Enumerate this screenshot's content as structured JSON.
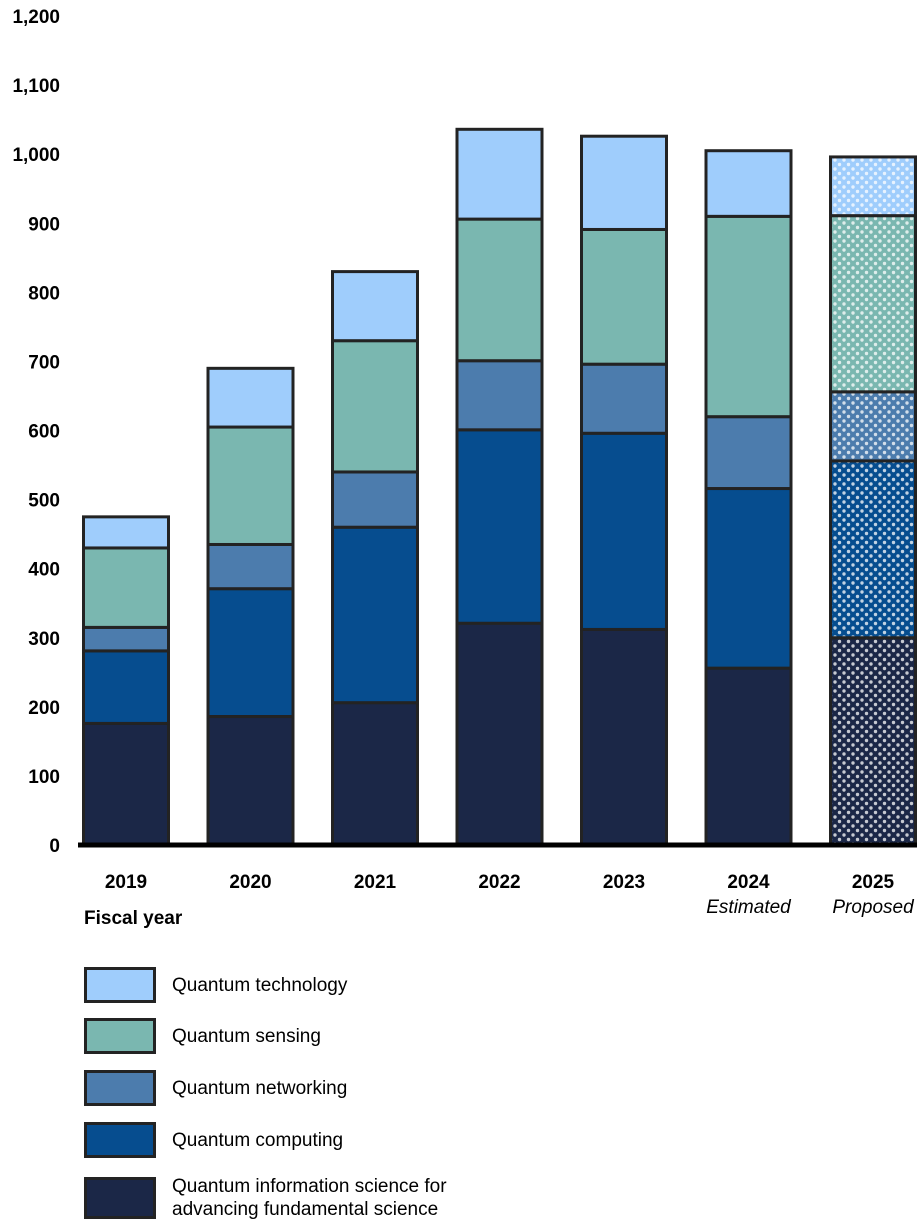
{
  "chart_data": {
    "type": "bar",
    "stacked": true,
    "x_axis_title": "Fiscal year",
    "categories": [
      "2019",
      "2020",
      "2021",
      "2022",
      "2023",
      "2024",
      "2025"
    ],
    "category_notes": [
      "",
      "",
      "",
      "",
      "",
      "Estimated",
      "Proposed"
    ],
    "ylim": [
      0,
      1200
    ],
    "yticks": [
      "0",
      "100",
      "200",
      "300",
      "400",
      "500",
      "600",
      "700",
      "800",
      "900",
      "1,000",
      "1,100",
      "1,200"
    ],
    "ytick_values": [
      0,
      100,
      200,
      300,
      400,
      500,
      600,
      700,
      800,
      900,
      1000,
      1100,
      1200
    ],
    "grid": false,
    "legend_position": "bottom",
    "hatched_categories": [
      "2025"
    ],
    "series": [
      {
        "name": "Quantum information science for\nadvancing fundamental science",
        "color": "#1b2747",
        "values": [
          176,
          186,
          206,
          321,
          312,
          256,
          300
        ]
      },
      {
        "name": "Quantum computing",
        "color": "#064d8f",
        "values": [
          105,
          185,
          254,
          280,
          284,
          260,
          256
        ]
      },
      {
        "name": "Quantum networking",
        "color": "#4c7cad",
        "values": [
          34,
          64,
          80,
          100,
          100,
          104,
          100
        ]
      },
      {
        "name": "Quantum sensing",
        "color": "#7ab7b0",
        "values": [
          115,
          170,
          190,
          205,
          195,
          290,
          255
        ]
      },
      {
        "name": "Quantum technology",
        "color": "#9fcdfc",
        "values": [
          45,
          85,
          100,
          130,
          135,
          95,
          85
        ]
      }
    ]
  }
}
